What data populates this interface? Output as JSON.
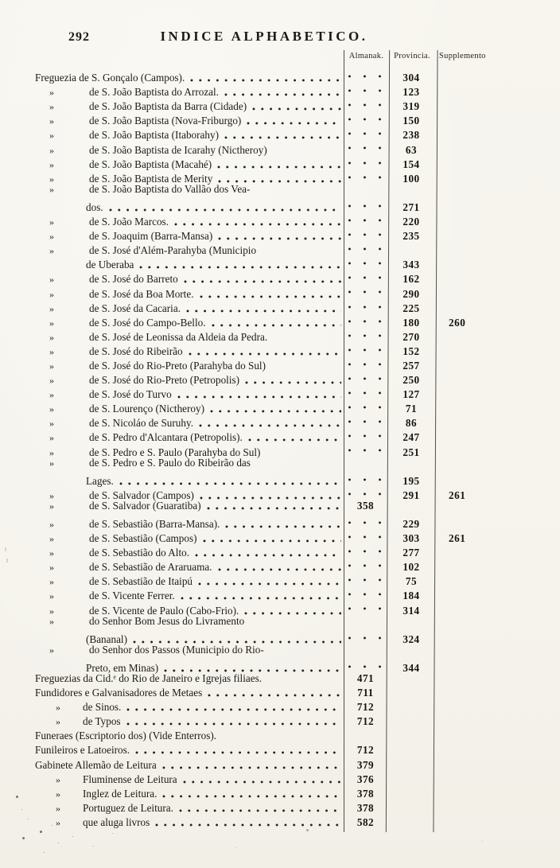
{
  "colors": {
    "paper": "#f5f3ec",
    "ink": "#1d1a16"
  },
  "header": {
    "page_number": "292",
    "title": "INDICE ALPHABETICO."
  },
  "table": {
    "columns": [
      "Almanak.",
      "Provincia.",
      "Supplemento"
    ],
    "rows": [
      {
        "ind": 0,
        "m": "",
        "t": "Freguezia de S. Gonçalo (Campos).",
        "ld": 1,
        "a": "d",
        "p": "304",
        "s": ""
      },
      {
        "ind": 1,
        "m": "»",
        "t": "de S. João Baptista do Arrozal.",
        "ld": 1,
        "a": "d",
        "p": "123",
        "s": ""
      },
      {
        "ind": 1,
        "m": "»",
        "t": "de S. João Baptista da Barra (Cidade)",
        "ld": 1,
        "a": "d",
        "p": "319",
        "s": ""
      },
      {
        "ind": 1,
        "m": "»",
        "t": "de S. João Baptista (Nova-Friburgo)",
        "ld": 1,
        "a": "d",
        "p": "150",
        "s": ""
      },
      {
        "ind": 1,
        "m": "»",
        "t": "de S. João Baptista (Itaborahy)",
        "ld": 1,
        "a": "d",
        "p": "238",
        "s": ""
      },
      {
        "ind": 1,
        "m": "»",
        "t": "de S. João Baptista de Icarahy (Nictheroy)",
        "ld": 0,
        "a": "d",
        "p": "63",
        "s": ""
      },
      {
        "ind": 1,
        "m": "»",
        "t": "de S. João Baptista (Macahé)",
        "ld": 1,
        "a": "d",
        "p": "154",
        "s": ""
      },
      {
        "ind": 1,
        "m": "»",
        "t": "de S. João Baptista de Merity",
        "ld": 1,
        "a": "d",
        "p": "100",
        "s": ""
      },
      {
        "ind": 1,
        "m": "»",
        "t": "de S. João Baptista do Vallão dos Vea-",
        "ld": 0,
        "a": "",
        "p": "",
        "s": ""
      },
      {
        "ind": 2,
        "m": "",
        "t": "dos.",
        "ld": 1,
        "a": "d",
        "p": "271",
        "s": ""
      },
      {
        "ind": 1,
        "m": "»",
        "t": "de S. João Marcos.",
        "ld": 1,
        "a": "d",
        "p": "220",
        "s": ""
      },
      {
        "ind": 1,
        "m": "»",
        "t": "de S. Joaquim (Barra-Mansa)",
        "ld": 1,
        "a": "d",
        "p": "235",
        "s": ""
      },
      {
        "ind": 1,
        "m": "»",
        "t": "de S. José d'Além-Parahyba (Municipio",
        "ld": 0,
        "a": "d",
        "p": "",
        "s": ""
      },
      {
        "ind": 2,
        "m": "",
        "t": "de Uberaba",
        "ld": 1,
        "a": "d",
        "p": "343",
        "s": ""
      },
      {
        "ind": 1,
        "m": "»",
        "t": "de S. José do Barreto",
        "ld": 1,
        "a": "d",
        "p": "162",
        "s": ""
      },
      {
        "ind": 1,
        "m": "»",
        "t": "de S. José da Boa Morte.",
        "ld": 1,
        "a": "d",
        "p": "290",
        "s": ""
      },
      {
        "ind": 1,
        "m": "»",
        "t": "de S. José da Cacaria.",
        "ld": 1,
        "a": "d",
        "p": "225",
        "s": ""
      },
      {
        "ind": 1,
        "m": "»",
        "t": "de S. José do Campo-Bello.",
        "ld": 1,
        "a": "d",
        "p": "180",
        "s": "260"
      },
      {
        "ind": 1,
        "m": "»",
        "t": "de S. José de Leonissa da Aldeia da Pedra.",
        "ld": 0,
        "a": "d",
        "p": "270",
        "s": ""
      },
      {
        "ind": 1,
        "m": "»",
        "t": "de S. José do Ribeirão",
        "ld": 1,
        "a": "d",
        "p": "152",
        "s": ""
      },
      {
        "ind": 1,
        "m": "»",
        "t": "de S. José do Rio-Preto (Parahyba do Sul)",
        "ld": 0,
        "a": "d",
        "p": "257",
        "s": ""
      },
      {
        "ind": 1,
        "m": "»",
        "t": "de S. José do Rio-Preto (Petropolis)",
        "ld": 1,
        "a": "d",
        "p": "250",
        "s": ""
      },
      {
        "ind": 1,
        "m": "»",
        "t": "de S. José do Turvo",
        "ld": 1,
        "a": "d",
        "p": "127",
        "s": ""
      },
      {
        "ind": 1,
        "m": "»",
        "t": "de S. Lourenço (Nictheroy)",
        "ld": 1,
        "a": "d",
        "p": "71",
        "s": ""
      },
      {
        "ind": 1,
        "m": "»",
        "t": "de S. Nicoláo de Suruhy.",
        "ld": 1,
        "a": "d",
        "p": "86",
        "s": ""
      },
      {
        "ind": 1,
        "m": "»",
        "t": "de S. Pedro d'Alcantara (Petropolis).",
        "ld": 1,
        "a": "d",
        "p": "247",
        "s": ""
      },
      {
        "ind": 1,
        "m": "»",
        "t": "de S. Pedro e S. Paulo (Parahyba do Sul)",
        "ld": 0,
        "a": "d",
        "p": "251",
        "s": ""
      },
      {
        "ind": 1,
        "m": "»",
        "t": "de S. Pedro e S. Paulo do Ribeirão das",
        "ld": 0,
        "a": "",
        "p": "",
        "s": ""
      },
      {
        "ind": 2,
        "m": "",
        "t": "Lages.",
        "ld": 1,
        "a": "d",
        "p": "195",
        "s": ""
      },
      {
        "ind": 1,
        "m": "»",
        "t": "de S. Salvador (Campos)",
        "ld": 1,
        "a": "d",
        "p": "291",
        "s": "261"
      },
      {
        "ind": 1,
        "m": "»",
        "t": "de S. Salvador (Guaratiba)",
        "ld": 1,
        "a": "358",
        "p": "",
        "s": ""
      },
      {
        "ind": 1,
        "m": "»",
        "t": "de S. Sebastião (Barra-Mansa).",
        "ld": 1,
        "a": "d",
        "p": "229",
        "s": ""
      },
      {
        "ind": 1,
        "m": "»",
        "t": "de S. Sebastião (Campos)",
        "ld": 1,
        "a": "d",
        "p": "303",
        "s": "261"
      },
      {
        "ind": 1,
        "m": "»",
        "t": "de S. Sebastião do Alto.",
        "ld": 1,
        "a": "d",
        "p": "277",
        "s": ""
      },
      {
        "ind": 1,
        "m": "»",
        "t": "de S. Sebastião de Araruama.",
        "ld": 1,
        "a": "d",
        "p": "102",
        "s": ""
      },
      {
        "ind": 1,
        "m": "»",
        "t": "de S. Sebastião de Itaipú",
        "ld": 1,
        "a": "d",
        "p": "75",
        "s": ""
      },
      {
        "ind": 1,
        "m": "»",
        "t": "de S. Vicente Ferrer.",
        "ld": 1,
        "a": "d",
        "p": "184",
        "s": ""
      },
      {
        "ind": 1,
        "m": "»",
        "t": "de S. Vicente de Paulo (Cabo-Frio).",
        "ld": 1,
        "a": "d",
        "p": "314",
        "s": ""
      },
      {
        "ind": 1,
        "m": "»",
        "t": "do Senhor Bom Jesus do Livramento",
        "ld": 0,
        "a": "",
        "p": "",
        "s": ""
      },
      {
        "ind": 2,
        "m": "",
        "t": "(Bananal)",
        "ld": 1,
        "a": "d",
        "p": "324",
        "s": ""
      },
      {
        "ind": 1,
        "m": "»",
        "t": "do Senhor dos Passos (Municipio do Rio-",
        "ld": 0,
        "a": "",
        "p": "",
        "s": ""
      },
      {
        "ind": 2,
        "m": "",
        "t": "Preto, em Minas)",
        "ld": 1,
        "a": "d",
        "p": "344",
        "s": ""
      },
      {
        "ind": 0,
        "m": "",
        "t": "Freguezias da Cid.ᵉ do Rio de Janeiro e Igrejas filiaes.",
        "ld": 0,
        "a": "471",
        "p": "",
        "s": ""
      },
      {
        "ind": 0,
        "m": "",
        "t": "Fundidores e Galvanisadores de Metaes",
        "ld": 1,
        "a": "711",
        "p": "",
        "s": ""
      },
      {
        "ind": 3,
        "m": "»",
        "t": "de Sinos.",
        "ld": 1,
        "a": "712",
        "p": "",
        "s": ""
      },
      {
        "ind": 3,
        "m": "»",
        "t": "de Typos",
        "ld": 1,
        "a": "712",
        "p": "",
        "s": ""
      },
      {
        "ind": 0,
        "m": "",
        "t": "Funeraes (Escriptorio dos) (Vide Enterros).",
        "ld": 0,
        "a": "",
        "p": "",
        "s": ""
      },
      {
        "ind": 0,
        "m": "",
        "t": "Funileiros e Latoeiros.",
        "ld": 1,
        "a": "712",
        "p": "",
        "s": ""
      },
      {
        "ind": 0,
        "m": "",
        "t": "Gabinete Allemão de Leitura",
        "ld": 1,
        "a": "379",
        "p": "",
        "s": ""
      },
      {
        "ind": 3,
        "m": "»",
        "t": "Fluminense de Leitura",
        "ld": 1,
        "a": "376",
        "p": "",
        "s": ""
      },
      {
        "ind": 3,
        "m": "»",
        "t": "Inglez de Leitura.",
        "ld": 1,
        "a": "378",
        "p": "",
        "s": ""
      },
      {
        "ind": 3,
        "m": "»",
        "t": "Portuguez de Leitura.",
        "ld": 1,
        "a": "378",
        "p": "",
        "s": ""
      },
      {
        "ind": 3,
        "m": "»",
        "t": "que aluga livros",
        "ld": 1,
        "a": "582",
        "p": "",
        "s": ""
      }
    ]
  }
}
